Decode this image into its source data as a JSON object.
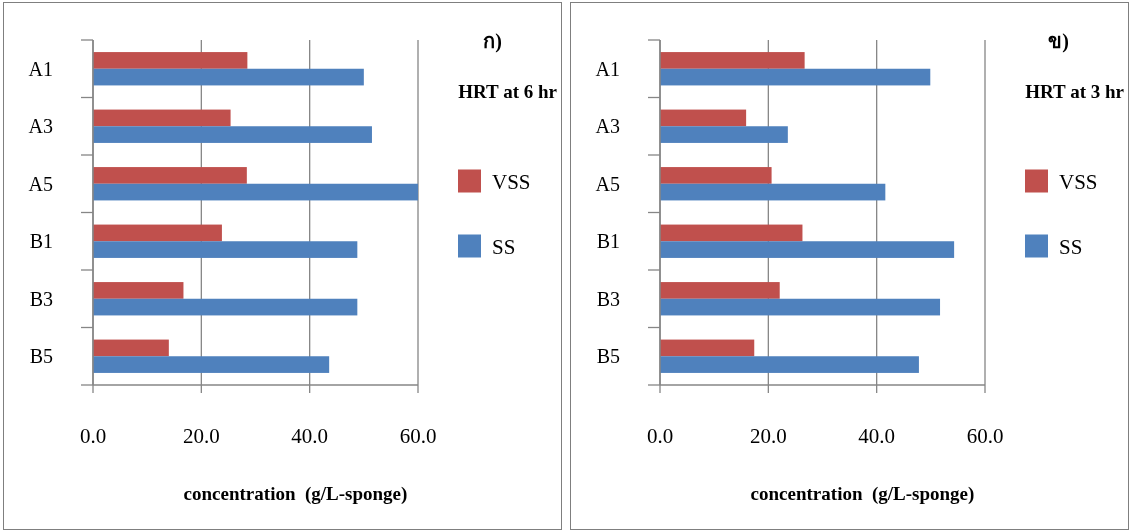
{
  "chart_data": [
    {
      "type": "bar",
      "orientation": "horizontal",
      "annotations": [
        "ก)",
        "HRT at 6 hr"
      ],
      "xlabel": "concentration  (g/L-sponge)",
      "categories": [
        "A1",
        "A3",
        "A5",
        "B1",
        "B3",
        "B5"
      ],
      "series": [
        {
          "name": "VSS",
          "color": "#c0504d",
          "values": [
            28.5,
            25.4,
            28.4,
            23.8,
            16.7,
            14.0
          ]
        },
        {
          "name": "SS",
          "color": "#4f81bd",
          "values": [
            50.0,
            51.5,
            60.0,
            48.8,
            48.8,
            43.6
          ]
        }
      ],
      "xlim": [
        0,
        60
      ],
      "xticks": [
        {
          "value": 0,
          "label": "0.0"
        },
        {
          "value": 20,
          "label": "20.0"
        },
        {
          "value": 40,
          "label": "40.0"
        },
        {
          "value": 60,
          "label": "60.0"
        }
      ],
      "grid": "x",
      "legend": "right"
    },
    {
      "type": "bar",
      "orientation": "horizontal",
      "annotations": [
        "ข)",
        "HRT at 3 hr"
      ],
      "xlabel": "concentration  (g/L-sponge)",
      "categories": [
        "A1",
        "A3",
        "A5",
        "B1",
        "B3",
        "B5"
      ],
      "series": [
        {
          "name": "VSS",
          "color": "#c0504d",
          "values": [
            26.7,
            15.9,
            20.6,
            26.3,
            22.1,
            17.4
          ]
        },
        {
          "name": "SS",
          "color": "#4f81bd",
          "values": [
            49.9,
            23.6,
            41.6,
            54.3,
            51.7,
            47.8
          ]
        }
      ],
      "xlim": [
        0,
        60
      ],
      "xticks": [
        {
          "value": 0,
          "label": "0.0"
        },
        {
          "value": 20,
          "label": "20.0"
        },
        {
          "value": 40,
          "label": "40.0"
        },
        {
          "value": 60,
          "label": "60.0"
        }
      ],
      "grid": "x",
      "legend": "right"
    }
  ]
}
